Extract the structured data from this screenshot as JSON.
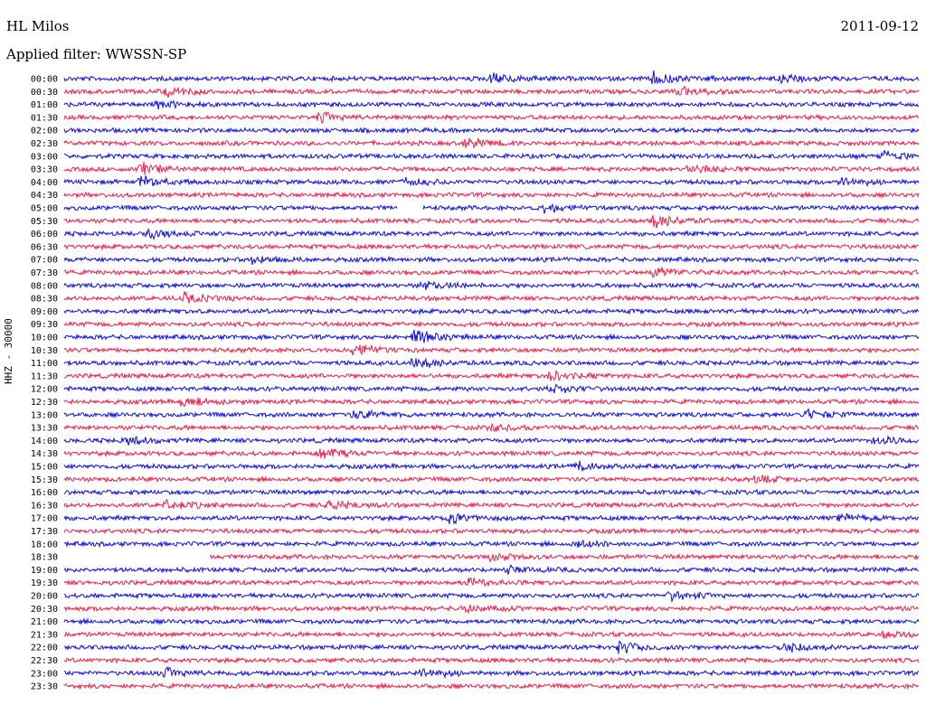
{
  "header": {
    "station": "HL Milos",
    "date": "2011-09-12",
    "filter_text": "Applied filter: WWSSN-SP"
  },
  "channel": "HHZ - 30000",
  "colors": {
    "trace_a": "#1010e0",
    "trace_b": "#f0204a"
  },
  "chart_data": {
    "type": "line",
    "title": "",
    "ylabel": "HHZ - 30000",
    "trace_interval_minutes": 30,
    "y_tick_labels": [
      "00:00",
      "00:30",
      "01:00",
      "01:30",
      "02:00",
      "02:30",
      "03:00",
      "03:30",
      "04:00",
      "04:30",
      "05:00",
      "05:30",
      "06:00",
      "06:30",
      "07:00",
      "07:30",
      "08:00",
      "08:30",
      "09:00",
      "09:30",
      "10:00",
      "10:30",
      "11:00",
      "11:30",
      "12:00",
      "12:30",
      "13:00",
      "13:30",
      "14:00",
      "14:30",
      "15:00",
      "15:30",
      "16:00",
      "16:30",
      "17:00",
      "17:30",
      "18:00",
      "18:30",
      "19:00",
      "19:30",
      "20:00",
      "20:30",
      "21:00",
      "21:30",
      "22:00",
      "22:30",
      "23:00",
      "23:30"
    ],
    "events": [
      {
        "row": 0,
        "pos": 0.5,
        "amp": 5
      },
      {
        "row": 0,
        "pos": 0.69,
        "amp": 6
      },
      {
        "row": 0,
        "pos": 0.84,
        "amp": 4
      },
      {
        "row": 1,
        "pos": 0.12,
        "amp": 4
      },
      {
        "row": 1,
        "pos": 0.72,
        "amp": 4
      },
      {
        "row": 2,
        "pos": 0.11,
        "amp": 3
      },
      {
        "row": 3,
        "pos": 0.3,
        "amp": 4
      },
      {
        "row": 5,
        "pos": 0.47,
        "amp": 4
      },
      {
        "row": 6,
        "pos": 0.96,
        "amp": 4
      },
      {
        "row": 7,
        "pos": 0.09,
        "amp": 5
      },
      {
        "row": 7,
        "pos": 0.73,
        "amp": 4
      },
      {
        "row": 8,
        "pos": 0.09,
        "amp": 5
      },
      {
        "row": 8,
        "pos": 0.4,
        "amp": 3
      },
      {
        "row": 8,
        "pos": 0.91,
        "amp": 4
      },
      {
        "row": 10,
        "pos": 0.56,
        "amp": 4
      },
      {
        "row": 11,
        "pos": 0.69,
        "amp": 6
      },
      {
        "row": 12,
        "pos": 0.1,
        "amp": 4
      },
      {
        "row": 14,
        "pos": 0.22,
        "amp": 3
      },
      {
        "row": 15,
        "pos": 0.69,
        "amp": 5
      },
      {
        "row": 16,
        "pos": 0.42,
        "amp": 4
      },
      {
        "row": 17,
        "pos": 0.14,
        "amp": 4
      },
      {
        "row": 20,
        "pos": 0.41,
        "amp": 5
      },
      {
        "row": 21,
        "pos": 0.34,
        "amp": 6
      },
      {
        "row": 22,
        "pos": 0.41,
        "amp": 5
      },
      {
        "row": 23,
        "pos": 0.57,
        "amp": 4
      },
      {
        "row": 24,
        "pos": 0.57,
        "amp": 4
      },
      {
        "row": 25,
        "pos": 0.14,
        "amp": 4
      },
      {
        "row": 26,
        "pos": 0.34,
        "amp": 4
      },
      {
        "row": 26,
        "pos": 0.87,
        "amp": 4
      },
      {
        "row": 27,
        "pos": 0.5,
        "amp": 3
      },
      {
        "row": 28,
        "pos": 0.07,
        "amp": 4
      },
      {
        "row": 28,
        "pos": 0.95,
        "amp": 4
      },
      {
        "row": 29,
        "pos": 0.3,
        "amp": 4
      },
      {
        "row": 30,
        "pos": 0.6,
        "amp": 4
      },
      {
        "row": 31,
        "pos": 0.81,
        "amp": 3
      },
      {
        "row": 33,
        "pos": 0.12,
        "amp": 4
      },
      {
        "row": 33,
        "pos": 0.31,
        "amp": 4
      },
      {
        "row": 34,
        "pos": 0.45,
        "amp": 4
      },
      {
        "row": 34,
        "pos": 0.91,
        "amp": 3
      },
      {
        "row": 36,
        "pos": 0.6,
        "amp": 3
      },
      {
        "row": 37,
        "pos": 0.5,
        "amp": 3
      },
      {
        "row": 38,
        "pos": 0.52,
        "amp": 3
      },
      {
        "row": 39,
        "pos": 0.47,
        "amp": 4
      },
      {
        "row": 40,
        "pos": 0.71,
        "amp": 4
      },
      {
        "row": 41,
        "pos": 0.47,
        "amp": 3
      },
      {
        "row": 43,
        "pos": 0.96,
        "amp": 3
      },
      {
        "row": 44,
        "pos": 0.65,
        "amp": 5
      },
      {
        "row": 44,
        "pos": 0.84,
        "amp": 5
      },
      {
        "row": 46,
        "pos": 0.12,
        "amp": 4
      },
      {
        "row": 46,
        "pos": 0.42,
        "amp": 4
      }
    ],
    "gaps": [
      {
        "row": 10,
        "start": 0.39,
        "end": 0.42
      },
      {
        "row": 37,
        "start": 0.0,
        "end": 0.17
      }
    ]
  }
}
